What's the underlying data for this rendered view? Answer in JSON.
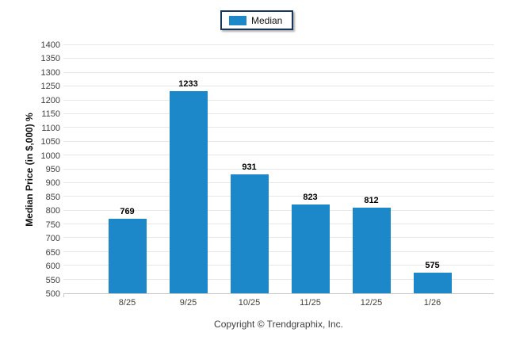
{
  "legend": {
    "items": [
      {
        "label": "Median",
        "color": "#1c87c9"
      }
    ]
  },
  "footer": {
    "copyright": "Copyright © Trendgraphix, Inc."
  },
  "chart_data": {
    "type": "bar",
    "title": "",
    "categories": [
      "8/25",
      "9/25",
      "10/25",
      "11/25",
      "12/25",
      "1/26"
    ],
    "series": [
      {
        "name": "Median",
        "values": [
          769,
          1233,
          931,
          823,
          812,
          575
        ],
        "color": "#1c87c9"
      }
    ],
    "xlabel": "",
    "ylabel": "Median Price (in $,000) %",
    "ylim": [
      500,
      1400
    ],
    "ytick_step": 50,
    "grid": "horizontal",
    "gridline_color": "#e7e7e7",
    "legend_position": "top-center",
    "value_labels": true
  }
}
